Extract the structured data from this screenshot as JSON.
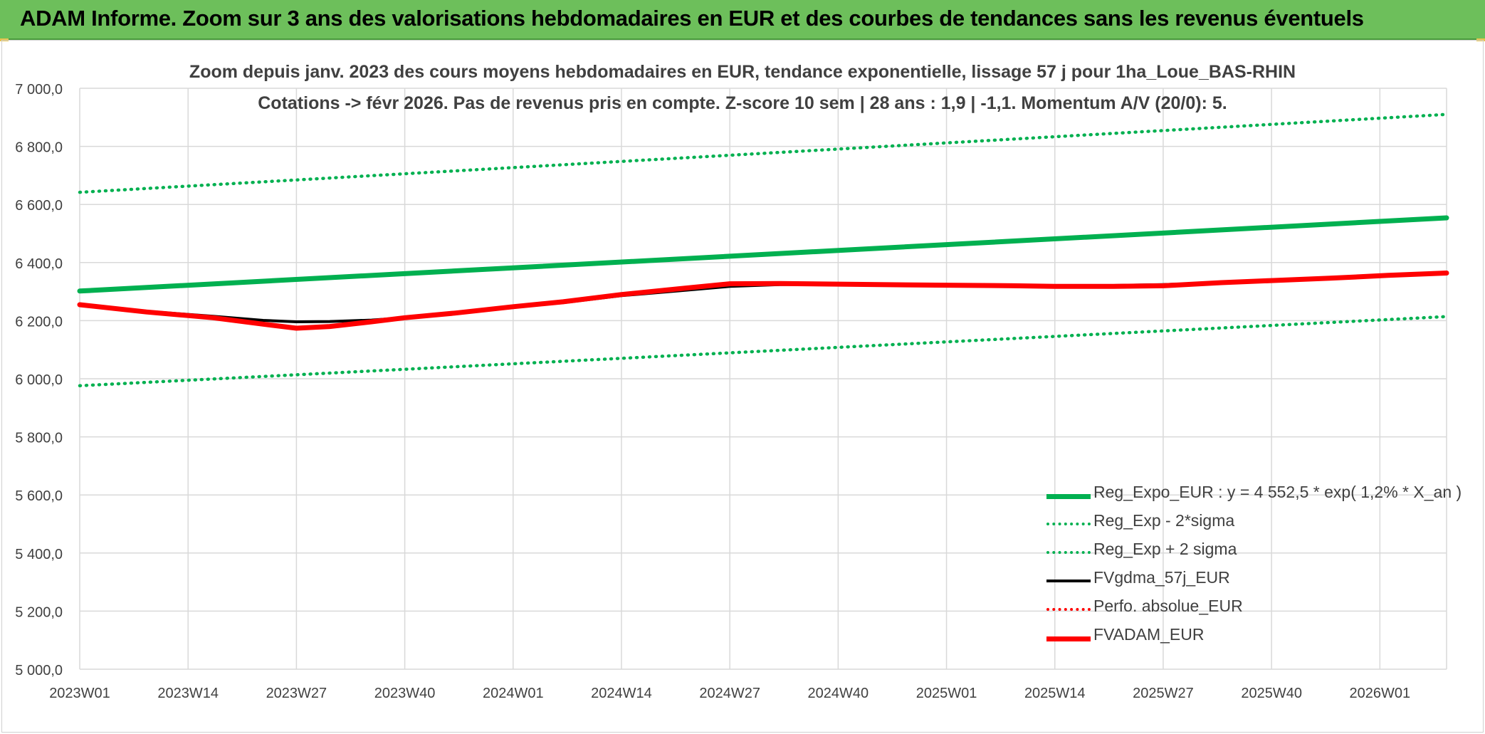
{
  "banner": {
    "title": "ADAM Informe. Zoom sur 3 ans des valorisations hebdomadaires en EUR et des courbes de tendances sans les revenus éventuels"
  },
  "colors": {
    "banner_bg": "#6dbf5b",
    "trend_green": "#00b050",
    "black_series": "#000000",
    "red_series": "#ff0000",
    "grid": "#d9d9d9",
    "text": "#404040"
  },
  "chart_data": {
    "type": "line",
    "title": "Zoom depuis janv. 2023 des cours moyens hebdomadaires en EUR, tendance exponentielle, lissage 57 j pour 1ha_Loue_BAS-RHIN",
    "subtitle": "Cotations -> févr 2026. Pas de revenus pris en compte. Z-score 10 sem | 28 ans : 1,9 | -1,1. Momentum A/V (20/0): 5.",
    "xlabel": "",
    "ylabel": "",
    "ylim": [
      5000,
      7000
    ],
    "yticks": [
      "7 000,0",
      "6 800,0",
      "6 600,0",
      "6 400,0",
      "6 200,0",
      "6 000,0",
      "5 800,0",
      "5 600,0",
      "5 400,0",
      "5 200,0",
      "5 000,0"
    ],
    "x_tick_labels": [
      "2023W01",
      "2023W14",
      "2023W27",
      "2023W40",
      "2024W01",
      "2024W14",
      "2024W27",
      "2024W40",
      "2025W01",
      "2025W14",
      "2025W27",
      "2025W40",
      "2026W01"
    ],
    "x_tick_index": [
      0,
      13,
      26,
      39,
      52,
      65,
      78,
      91,
      104,
      117,
      130,
      143,
      156
    ],
    "x_last_index": 164,
    "grid": true,
    "legend_position": "bottom-right",
    "series": [
      {
        "name": "Reg_Expo_EUR : y = 4 552,5 * exp( 1,2% *  X_an )",
        "style": "solid-thick",
        "color": "#00b050",
        "points": [
          [
            0,
            6302
          ],
          [
            164,
            6554
          ]
        ]
      },
      {
        "name": "Reg_Exp - 2*sigma",
        "style": "dotted",
        "color": "#00b050",
        "points": [
          [
            0,
            5976
          ],
          [
            164,
            6214
          ]
        ]
      },
      {
        "name": "Reg_Exp + 2 sigma",
        "style": "dotted",
        "color": "#00b050",
        "points": [
          [
            0,
            6642
          ],
          [
            164,
            6910
          ]
        ]
      },
      {
        "name": "FVgdma_57j_EUR",
        "style": "solid",
        "color": "#000000",
        "points": [
          [
            0,
            6255
          ],
          [
            8,
            6232
          ],
          [
            16,
            6215
          ],
          [
            22,
            6201
          ],
          [
            26,
            6196
          ],
          [
            30,
            6197
          ],
          [
            35,
            6202
          ],
          [
            39,
            6210
          ],
          [
            45,
            6226
          ],
          [
            52,
            6246
          ],
          [
            58,
            6262
          ],
          [
            65,
            6286
          ],
          [
            72,
            6303
          ],
          [
            78,
            6318
          ],
          [
            84,
            6324
          ],
          [
            90,
            6326
          ],
          [
            96,
            6324
          ],
          [
            104,
            6322
          ],
          [
            112,
            6321
          ],
          [
            117,
            6320
          ],
          [
            124,
            6321
          ],
          [
            130,
            6324
          ],
          [
            137,
            6331
          ],
          [
            143,
            6337
          ],
          [
            150,
            6346
          ],
          [
            157,
            6356
          ],
          [
            164,
            6364
          ]
        ]
      },
      {
        "name": "Perfo. absolue_EUR",
        "style": "dotted",
        "color": "#ff0000",
        "points": [
          [
            0,
            6255
          ],
          [
            8,
            6230
          ],
          [
            16,
            6210
          ],
          [
            22,
            6188
          ],
          [
            26,
            6174
          ],
          [
            30,
            6180
          ],
          [
            35,
            6196
          ],
          [
            39,
            6210
          ],
          [
            45,
            6226
          ],
          [
            52,
            6248
          ],
          [
            58,
            6265
          ],
          [
            65,
            6290
          ],
          [
            72,
            6310
          ],
          [
            78,
            6327
          ],
          [
            84,
            6328
          ],
          [
            90,
            6326
          ],
          [
            96,
            6324
          ],
          [
            104,
            6322
          ],
          [
            112,
            6320
          ],
          [
            117,
            6318
          ],
          [
            124,
            6318
          ],
          [
            130,
            6320
          ],
          [
            137,
            6331
          ],
          [
            143,
            6338
          ],
          [
            150,
            6346
          ],
          [
            157,
            6356
          ],
          [
            164,
            6364
          ]
        ]
      },
      {
        "name": "FVADAM_EUR",
        "style": "solid-thick",
        "color": "#ff0000",
        "points": [
          [
            0,
            6255
          ],
          [
            8,
            6230
          ],
          [
            16,
            6210
          ],
          [
            22,
            6188
          ],
          [
            26,
            6174
          ],
          [
            30,
            6180
          ],
          [
            35,
            6196
          ],
          [
            39,
            6210
          ],
          [
            45,
            6226
          ],
          [
            52,
            6248
          ],
          [
            58,
            6265
          ],
          [
            65,
            6290
          ],
          [
            72,
            6310
          ],
          [
            78,
            6327
          ],
          [
            84,
            6328
          ],
          [
            90,
            6326
          ],
          [
            96,
            6324
          ],
          [
            104,
            6322
          ],
          [
            112,
            6320
          ],
          [
            117,
            6318
          ],
          [
            124,
            6318
          ],
          [
            130,
            6320
          ],
          [
            137,
            6331
          ],
          [
            143,
            6338
          ],
          [
            150,
            6346
          ],
          [
            157,
            6356
          ],
          [
            164,
            6364
          ]
        ]
      }
    ]
  }
}
